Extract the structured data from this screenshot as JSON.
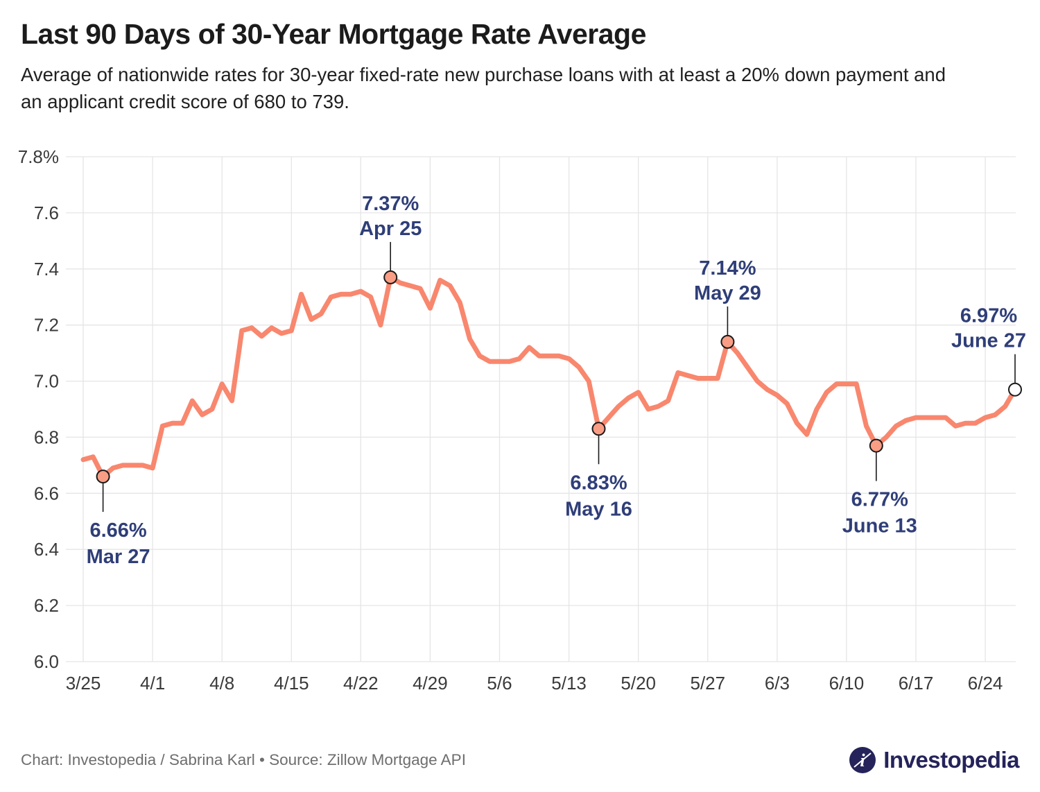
{
  "footer": {
    "credit": "Chart: Investopedia / Sabrina Karl • Source: Zillow Mortgage API",
    "brand": "Investopedia"
  },
  "chart_data": {
    "type": "line",
    "title": "Last 90 Days of 30-Year Mortgage Rate Average",
    "subtitle": "Average of nationwide rates for 30-year fixed-rate new purchase loans with at least a 20% down payment and an applicant credit score of 680 to 739.",
    "series_name": "30-year mortgage rate average (%)",
    "ylim": [
      6.0,
      7.8
    ],
    "grid": true,
    "dates": [
      "3/25",
      "3/26",
      "3/27",
      "3/28",
      "3/29",
      "3/30",
      "3/31",
      "4/1",
      "4/2",
      "4/3",
      "4/4",
      "4/5",
      "4/6",
      "4/7",
      "4/8",
      "4/9",
      "4/10",
      "4/11",
      "4/12",
      "4/13",
      "4/14",
      "4/15",
      "4/16",
      "4/17",
      "4/18",
      "4/19",
      "4/20",
      "4/21",
      "4/22",
      "4/23",
      "4/24",
      "4/25",
      "4/26",
      "4/27",
      "4/28",
      "4/29",
      "4/30",
      "5/1",
      "5/2",
      "5/3",
      "5/4",
      "5/5",
      "5/6",
      "5/7",
      "5/8",
      "5/9",
      "5/10",
      "5/11",
      "5/12",
      "5/13",
      "5/14",
      "5/15",
      "5/16",
      "5/17",
      "5/18",
      "5/19",
      "5/20",
      "5/21",
      "5/22",
      "5/23",
      "5/24",
      "5/25",
      "5/26",
      "5/27",
      "5/28",
      "5/29",
      "5/30",
      "5/31",
      "6/1",
      "6/2",
      "6/3",
      "6/4",
      "6/5",
      "6/6",
      "6/7",
      "6/8",
      "6/9",
      "6/10",
      "6/11",
      "6/12",
      "6/13",
      "6/14",
      "6/15",
      "6/16",
      "6/17",
      "6/18",
      "6/19",
      "6/20",
      "6/21",
      "6/22",
      "6/23",
      "6/24",
      "6/25",
      "6/26",
      "6/27"
    ],
    "values": [
      6.72,
      6.73,
      6.66,
      6.69,
      6.7,
      6.7,
      6.7,
      6.69,
      6.84,
      6.85,
      6.85,
      6.93,
      6.88,
      6.9,
      6.99,
      6.93,
      7.18,
      7.19,
      7.16,
      7.19,
      7.17,
      7.18,
      7.31,
      7.22,
      7.24,
      7.3,
      7.31,
      7.31,
      7.32,
      7.3,
      7.2,
      7.37,
      7.35,
      7.34,
      7.33,
      7.26,
      7.36,
      7.34,
      7.28,
      7.15,
      7.09,
      7.07,
      7.07,
      7.07,
      7.08,
      7.12,
      7.09,
      7.09,
      7.09,
      7.08,
      7.05,
      7.0,
      6.83,
      6.87,
      6.91,
      6.94,
      6.96,
      6.9,
      6.91,
      6.93,
      7.03,
      7.02,
      7.01,
      7.01,
      7.01,
      7.14,
      7.1,
      7.05,
      7.0,
      6.97,
      6.95,
      6.92,
      6.85,
      6.81,
      6.9,
      6.96,
      6.99,
      6.99,
      6.99,
      6.84,
      6.77,
      6.8,
      6.84,
      6.86,
      6.87,
      6.87,
      6.87,
      6.87,
      6.84,
      6.85,
      6.85,
      6.87,
      6.88,
      6.91,
      6.97
    ],
    "x_ticks": [
      {
        "index": 0,
        "label": "3/25"
      },
      {
        "index": 7,
        "label": "4/1"
      },
      {
        "index": 14,
        "label": "4/8"
      },
      {
        "index": 21,
        "label": "4/15"
      },
      {
        "index": 28,
        "label": "4/22"
      },
      {
        "index": 35,
        "label": "4/29"
      },
      {
        "index": 42,
        "label": "5/6"
      },
      {
        "index": 49,
        "label": "5/13"
      },
      {
        "index": 56,
        "label": "5/20"
      },
      {
        "index": 63,
        "label": "5/27"
      },
      {
        "index": 70,
        "label": "6/3"
      },
      {
        "index": 77,
        "label": "6/10"
      },
      {
        "index": 84,
        "label": "6/17"
      },
      {
        "index": 91,
        "label": "6/24"
      }
    ],
    "y_ticks": [
      {
        "value": 6.0,
        "label": "6.0"
      },
      {
        "value": 6.2,
        "label": "6.2"
      },
      {
        "value": 6.4,
        "label": "6.4"
      },
      {
        "value": 6.6,
        "label": "6.6"
      },
      {
        "value": 6.8,
        "label": "6.8"
      },
      {
        "value": 7.0,
        "label": "7.0"
      },
      {
        "value": 7.2,
        "label": "7.2"
      },
      {
        "value": 7.4,
        "label": "7.4"
      },
      {
        "value": 7.6,
        "label": "7.6"
      },
      {
        "value": 7.8,
        "label": "7.8%"
      }
    ],
    "annotations": [
      {
        "index": 2,
        "value_label": "6.66%",
        "date_label": "Mar 27",
        "position": "below",
        "marker": "filled",
        "dx": 22
      },
      {
        "index": 31,
        "value_label": "7.37%",
        "date_label": "Apr 25",
        "position": "above",
        "marker": "filled",
        "dx": 0
      },
      {
        "index": 52,
        "value_label": "6.83%",
        "date_label": "May 16",
        "position": "below",
        "marker": "filled",
        "dx": 0
      },
      {
        "index": 65,
        "value_label": "7.14%",
        "date_label": "May 29",
        "position": "above",
        "marker": "filled",
        "dx": 0
      },
      {
        "index": 80,
        "value_label": "6.77%",
        "date_label": "June 13",
        "position": "below",
        "marker": "filled",
        "dx": 5
      },
      {
        "index": 94,
        "value_label": "6.97%",
        "date_label": "June 27",
        "position": "above",
        "marker": "open",
        "dx": -38
      }
    ],
    "colors": {
      "line": "#F8876E",
      "marker_fill": "#F99D85",
      "annotation": "#2F3E78",
      "grid": "#E5E5E5",
      "axis_text": "#3a3a3a",
      "stem": "#1a1a1a"
    }
  }
}
